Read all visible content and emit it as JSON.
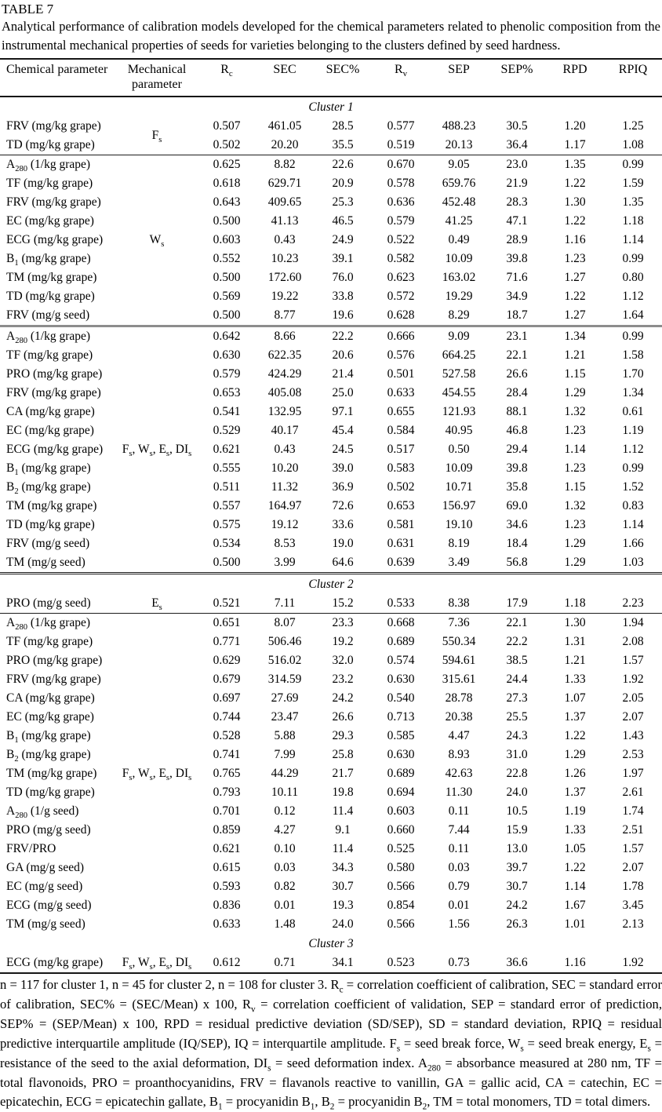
{
  "page": {
    "label": "TABLE 7",
    "caption": "Analytical performance of calibration models developed for the chemical parameters related to phenolic composition from the instrumental mechanical properties of seeds for varieties belonging to the clusters defined by seed hardness."
  },
  "table": {
    "columns": [
      "Chemical parameter",
      "Mechanical parameter",
      "R_{c}",
      "SEC",
      "SEC%",
      "R_{v}",
      "SEP",
      "SEP%",
      "RPD",
      "RPIQ"
    ],
    "sections": [
      {
        "title": "Cluster 1",
        "groups": [
          {
            "mech": "F_{s}",
            "rows": [
              {
                "param": "FRV (mg/kg grape)",
                "values": [
                  "0.507",
                  "461.05",
                  "28.5",
                  "0.577",
                  "488.23",
                  "30.5",
                  "1.20",
                  "1.25"
                ]
              },
              {
                "param": "TD (mg/kg grape)",
                "values": [
                  "0.502",
                  "20.20",
                  "35.5",
                  "0.519",
                  "20.13",
                  "36.4",
                  "1.17",
                  "1.08"
                ]
              }
            ]
          },
          {
            "mech": "W_{s}",
            "rows": [
              {
                "param": "A_{280} (1/kg grape)",
                "values": [
                  "0.625",
                  "8.82",
                  "22.6",
                  "0.670",
                  "9.05",
                  "23.0",
                  "1.35",
                  "0.99"
                ]
              },
              {
                "param": "TF (mg/kg grape)",
                "values": [
                  "0.618",
                  "629.71",
                  "20.9",
                  "0.578",
                  "659.76",
                  "21.9",
                  "1.22",
                  "1.59"
                ]
              },
              {
                "param": "FRV (mg/kg grape)",
                "values": [
                  "0.643",
                  "409.65",
                  "25.3",
                  "0.636",
                  "452.48",
                  "28.3",
                  "1.30",
                  "1.35"
                ]
              },
              {
                "param": "EC (mg/kg grape)",
                "values": [
                  "0.500",
                  "41.13",
                  "46.5",
                  "0.579",
                  "41.25",
                  "47.1",
                  "1.22",
                  "1.18"
                ]
              },
              {
                "param": "ECG (mg/kg grape)",
                "values": [
                  "0.603",
                  "0.43",
                  "24.9",
                  "0.522",
                  "0.49",
                  "28.9",
                  "1.16",
                  "1.14"
                ]
              },
              {
                "param": "B_{1} (mg/kg grape)",
                "values": [
                  "0.552",
                  "10.23",
                  "39.1",
                  "0.582",
                  "10.09",
                  "39.8",
                  "1.23",
                  "0.99"
                ]
              },
              {
                "param": "TM (mg/kg grape)",
                "values": [
                  "0.500",
                  "172.60",
                  "76.0",
                  "0.623",
                  "163.02",
                  "71.6",
                  "1.27",
                  "0.80"
                ]
              },
              {
                "param": "TD (mg/kg grape)",
                "values": [
                  "0.569",
                  "19.22",
                  "33.8",
                  "0.572",
                  "19.29",
                  "34.9",
                  "1.22",
                  "1.12"
                ]
              },
              {
                "param": "FRV (mg/g seed)",
                "values": [
                  "0.500",
                  "8.77",
                  "19.6",
                  "0.628",
                  "8.29",
                  "18.7",
                  "1.27",
                  "1.64"
                ]
              }
            ]
          },
          {
            "mech": "F_{s}, W_{s}, E_{s}, DI_{s}",
            "rows": [
              {
                "param": "A_{280} (1/kg grape)",
                "values": [
                  "0.642",
                  "8.66",
                  "22.2",
                  "0.666",
                  "9.09",
                  "23.1",
                  "1.34",
                  "0.99"
                ]
              },
              {
                "param": "TF (mg/kg grape)",
                "values": [
                  "0.630",
                  "622.35",
                  "20.6",
                  "0.576",
                  "664.25",
                  "22.1",
                  "1.21",
                  "1.58"
                ]
              },
              {
                "param": "PRO (mg/kg grape)",
                "values": [
                  "0.579",
                  "424.29",
                  "21.4",
                  "0.501",
                  "527.58",
                  "26.6",
                  "1.15",
                  "1.70"
                ]
              },
              {
                "param": "FRV (mg/kg grape)",
                "values": [
                  "0.653",
                  "405.08",
                  "25.0",
                  "0.633",
                  "454.55",
                  "28.4",
                  "1.29",
                  "1.34"
                ]
              },
              {
                "param": "CA (mg/kg grape)",
                "values": [
                  "0.541",
                  "132.95",
                  "97.1",
                  "0.655",
                  "121.93",
                  "88.1",
                  "1.32",
                  "0.61"
                ]
              },
              {
                "param": "EC (mg/kg grape)",
                "values": [
                  "0.529",
                  "40.17",
                  "45.4",
                  "0.584",
                  "40.95",
                  "46.8",
                  "1.23",
                  "1.19"
                ]
              },
              {
                "param": "ECG (mg/kg grape)",
                "values": [
                  "0.621",
                  "0.43",
                  "24.5",
                  "0.517",
                  "0.50",
                  "29.4",
                  "1.14",
                  "1.12"
                ]
              },
              {
                "param": "B_{1} (mg/kg grape)",
                "values": [
                  "0.555",
                  "10.20",
                  "39.0",
                  "0.583",
                  "10.09",
                  "39.8",
                  "1.23",
                  "0.99"
                ]
              },
              {
                "param": "B_{2} (mg/kg grape)",
                "values": [
                  "0.511",
                  "11.32",
                  "36.9",
                  "0.502",
                  "10.71",
                  "35.8",
                  "1.15",
                  "1.52"
                ]
              },
              {
                "param": "TM (mg/kg grape)",
                "values": [
                  "0.557",
                  "164.97",
                  "72.6",
                  "0.653",
                  "156.97",
                  "69.0",
                  "1.32",
                  "0.83"
                ]
              },
              {
                "param": "TD (mg/kg grape)",
                "values": [
                  "0.575",
                  "19.12",
                  "33.6",
                  "0.581",
                  "19.10",
                  "34.6",
                  "1.23",
                  "1.14"
                ]
              },
              {
                "param": "FRV (mg/g seed)",
                "values": [
                  "0.534",
                  "8.53",
                  "19.0",
                  "0.631",
                  "8.19",
                  "18.4",
                  "1.29",
                  "1.66"
                ]
              },
              {
                "param": "TM (mg/g seed)",
                "values": [
                  "0.500",
                  "3.99",
                  "64.6",
                  "0.639",
                  "3.49",
                  "56.8",
                  "1.29",
                  "1.03"
                ]
              }
            ]
          }
        ]
      },
      {
        "title": "Cluster 2",
        "groups": [
          {
            "mech": "E_{s}",
            "rows": [
              {
                "param": "PRO (mg/g seed)",
                "values": [
                  "0.521",
                  "7.11",
                  "15.2",
                  "0.533",
                  "8.38",
                  "17.9",
                  "1.18",
                  "2.23"
                ]
              }
            ]
          },
          {
            "mech": "F_{s}, W_{s}, E_{s}, DI_{s}",
            "rows": [
              {
                "param": "A_{280} (1/kg grape)",
                "values": [
                  "0.651",
                  "8.07",
                  "23.3",
                  "0.668",
                  "7.36",
                  "22.1",
                  "1.30",
                  "1.94"
                ]
              },
              {
                "param": "TF (mg/kg grape)",
                "values": [
                  "0.771",
                  "506.46",
                  "19.2",
                  "0.689",
                  "550.34",
                  "22.2",
                  "1.31",
                  "2.08"
                ]
              },
              {
                "param": "PRO (mg/kg grape)",
                "values": [
                  "0.629",
                  "516.02",
                  "32.0",
                  "0.574",
                  "594.61",
                  "38.5",
                  "1.21",
                  "1.57"
                ]
              },
              {
                "param": "FRV (mg/kg grape)",
                "values": [
                  "0.679",
                  "314.59",
                  "23.2",
                  "0.630",
                  "315.61",
                  "24.4",
                  "1.33",
                  "1.92"
                ]
              },
              {
                "param": "CA (mg/kg grape)",
                "values": [
                  "0.697",
                  "27.69",
                  "24.2",
                  "0.540",
                  "28.78",
                  "27.3",
                  "1.07",
                  "2.05"
                ]
              },
              {
                "param": "EC (mg/kg grape)",
                "values": [
                  "0.744",
                  "23.47",
                  "26.6",
                  "0.713",
                  "20.38",
                  "25.5",
                  "1.37",
                  "2.07"
                ]
              },
              {
                "param": "B_{1} (mg/kg grape)",
                "values": [
                  "0.528",
                  "5.88",
                  "29.3",
                  "0.585",
                  "4.47",
                  "24.3",
                  "1.22",
                  "1.43"
                ]
              },
              {
                "param": "B_{2} (mg/kg grape)",
                "values": [
                  "0.741",
                  "7.99",
                  "25.8",
                  "0.630",
                  "8.93",
                  "31.0",
                  "1.29",
                  "2.53"
                ]
              },
              {
                "param": "TM (mg/kg grape)",
                "values": [
                  "0.765",
                  "44.29",
                  "21.7",
                  "0.689",
                  "42.63",
                  "22.8",
                  "1.26",
                  "1.97"
                ]
              },
              {
                "param": "TD (mg/kg grape)",
                "values": [
                  "0.793",
                  "10.11",
                  "19.8",
                  "0.694",
                  "11.30",
                  "24.0",
                  "1.37",
                  "2.61"
                ]
              },
              {
                "param": "A_{280} (1/g seed)",
                "values": [
                  "0.701",
                  "0.12",
                  "11.4",
                  "0.603",
                  "0.11",
                  "10.5",
                  "1.19",
                  "1.74"
                ]
              },
              {
                "param": "PRO (mg/g seed)",
                "values": [
                  "0.859",
                  "4.27",
                  "9.1",
                  "0.660",
                  "7.44",
                  "15.9",
                  "1.33",
                  "2.51"
                ]
              },
              {
                "param": "FRV/PRO",
                "values": [
                  "0.621",
                  "0.10",
                  "11.4",
                  "0.525",
                  "0.11",
                  "13.0",
                  "1.05",
                  "1.57"
                ]
              },
              {
                "param": "GA (mg/g seed)",
                "values": [
                  "0.615",
                  "0.03",
                  "34.3",
                  "0.580",
                  "0.03",
                  "39.7",
                  "1.22",
                  "2.07"
                ]
              },
              {
                "param": "EC (mg/g seed)",
                "values": [
                  "0.593",
                  "0.82",
                  "30.7",
                  "0.566",
                  "0.79",
                  "30.7",
                  "1.14",
                  "1.78"
                ]
              },
              {
                "param": "ECG (mg/g seed)",
                "values": [
                  "0.836",
                  "0.01",
                  "19.3",
                  "0.854",
                  "0.01",
                  "24.2",
                  "1.67",
                  "3.45"
                ]
              },
              {
                "param": "TM (mg/g seed)",
                "values": [
                  "0.633",
                  "1.48",
                  "24.0",
                  "0.566",
                  "1.56",
                  "26.3",
                  "1.01",
                  "2.13"
                ]
              }
            ]
          }
        ]
      },
      {
        "title": "Cluster 3",
        "groups": [
          {
            "mech": "F_{s}, W_{s}, E_{s}, DI_{s}",
            "rows": [
              {
                "param": "ECG (mg/kg grape)",
                "values": [
                  "0.612",
                  "0.71",
                  "34.1",
                  "0.523",
                  "0.73",
                  "36.6",
                  "1.16",
                  "1.92"
                ]
              }
            ]
          }
        ]
      }
    ]
  },
  "footnote": "n = 117 for cluster 1, n = 45 for cluster 2, n = 108 for cluster 3. R_{c} = correlation coefficient of calibration, SEC = standard error of calibration, SEC% = (SEC/Mean) x 100, R_{v} = correlation coefficient of validation, SEP = standard error of prediction, SEP% = (SEP/Mean) x 100, RPD = residual predictive deviation (SD/SEP), SD = standard deviation, RPIQ = residual predictive interquartile amplitude (IQ/SEP), IQ = interquartile amplitude. F_{s} = seed break force, W_{s} = seed break energy, E_{s} = resistance of the seed to the axial deformation, DI_{s} = seed deformation index. A_{280} = absorbance measured at 280 nm, TF = total flavonoids, PRO = proanthocyanidins, FRV = flavanols reactive to vanillin, GA = gallic acid, CA = catechin, EC = epicatechin, ECG = epicatechin gallate, B_{1} = procyanidin B_{1}, B_{2} = procyanidin B_{2}, TM = total monomers, TD = total dimers."
}
